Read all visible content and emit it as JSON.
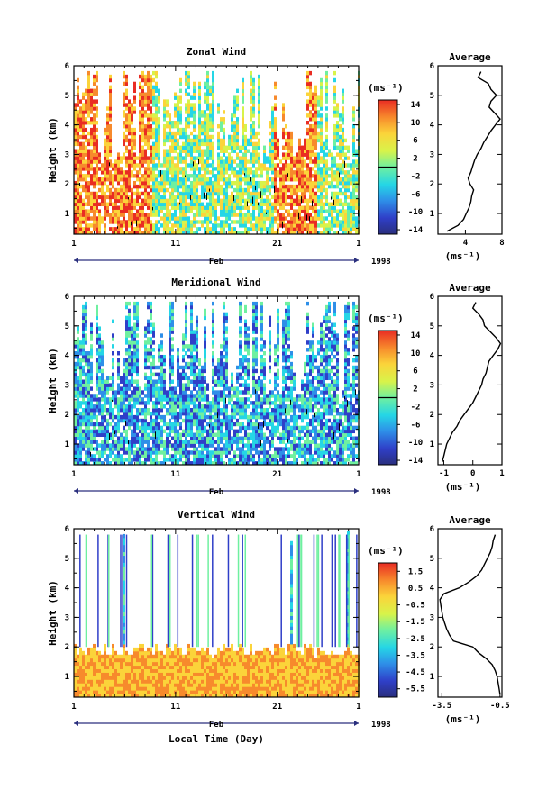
{
  "figure": {
    "xlabel": "Local Time (Day)",
    "year": "1998",
    "month_label": "Feb",
    "unit_label": "(ms⁻¹)"
  },
  "chart_data": [
    {
      "type": "heatmap",
      "title": "Zonal Wind",
      "ylabel": "Height (km)",
      "xlabel": "",
      "x_ticks": [
        "1",
        "11",
        "21",
        "1"
      ],
      "x_range": [
        "Feb 1",
        "Mar 1"
      ],
      "y_ticks": [
        "1",
        "2",
        "3",
        "4",
        "5",
        "6"
      ],
      "ylim": [
        0.3,
        6
      ],
      "colorbar": {
        "ticks": [
          "14",
          "10",
          "6",
          "2",
          "-2",
          "-6",
          "-10",
          "-14"
        ],
        "range": [
          -15,
          15
        ],
        "zero_line": 0
      },
      "profile": {
        "title": "Average",
        "xlabel": "(ms⁻¹)",
        "x_ticks": [
          "4",
          "8"
        ],
        "xlim": [
          1,
          8
        ],
        "heights": [
          0.4,
          0.6,
          0.8,
          1.0,
          1.2,
          1.4,
          1.6,
          1.8,
          2.0,
          2.2,
          2.4,
          2.6,
          2.8,
          3.0,
          3.2,
          3.4,
          3.6,
          3.8,
          4.0,
          4.2,
          4.4,
          4.6,
          4.8,
          5.0,
          5.2,
          5.4,
          5.6,
          5.8
        ],
        "values": [
          2.0,
          3.2,
          3.8,
          4.1,
          4.4,
          4.6,
          4.7,
          4.9,
          4.5,
          4.3,
          4.6,
          4.8,
          5.0,
          5.3,
          5.7,
          6.0,
          6.4,
          6.8,
          7.3,
          7.8,
          7.2,
          6.6,
          6.8,
          7.4,
          6.8,
          6.5,
          5.4,
          5.7
        ]
      }
    },
    {
      "type": "heatmap",
      "title": "Meridional Wind",
      "ylabel": "Height (km)",
      "xlabel": "",
      "x_ticks": [
        "1",
        "11",
        "21",
        "1"
      ],
      "x_range": [
        "Feb 1",
        "Mar 1"
      ],
      "y_ticks": [
        "1",
        "2",
        "3",
        "4",
        "5",
        "6"
      ],
      "ylim": [
        0.3,
        6
      ],
      "colorbar": {
        "ticks": [
          "14",
          "10",
          "6",
          "2",
          "-2",
          "-6",
          "-10",
          "-14"
        ],
        "range": [
          -15,
          15
        ],
        "zero_line": 0
      },
      "profile": {
        "title": "Average",
        "xlabel": "(ms⁻¹)",
        "x_ticks": [
          "-1",
          "0",
          "1"
        ],
        "xlim": [
          -1.2,
          1
        ],
        "heights": [
          0.4,
          0.6,
          0.8,
          1.0,
          1.2,
          1.4,
          1.6,
          1.8,
          2.0,
          2.2,
          2.4,
          2.6,
          2.8,
          3.0,
          3.2,
          3.4,
          3.6,
          3.8,
          4.0,
          4.2,
          4.4,
          4.6,
          4.8,
          5.0,
          5.2,
          5.4,
          5.6,
          5.8
        ],
        "values": [
          -1.05,
          -1.0,
          -0.95,
          -0.9,
          -0.8,
          -0.7,
          -0.55,
          -0.45,
          -0.3,
          -0.15,
          0.0,
          0.1,
          0.2,
          0.3,
          0.35,
          0.45,
          0.5,
          0.55,
          0.7,
          0.85,
          0.95,
          0.8,
          0.6,
          0.4,
          0.35,
          0.2,
          0.0,
          0.1
        ]
      }
    },
    {
      "type": "heatmap",
      "title": "Vertical Wind",
      "ylabel": "Height (km)",
      "xlabel": "Local Time (Day)",
      "x_ticks": [
        "1",
        "11",
        "21",
        "1"
      ],
      "x_range": [
        "Feb 1",
        "Mar 1"
      ],
      "y_ticks": [
        "1",
        "2",
        "3",
        "4",
        "5",
        "6"
      ],
      "ylim": [
        0.3,
        6
      ],
      "colorbar": {
        "ticks": [
          "1.5",
          "0.5",
          "-0.5",
          "-1.5",
          "-2.5",
          "-3.5",
          "-4.5",
          "-5.5"
        ],
        "range": [
          -6,
          2
        ],
        "zero_line": null
      },
      "profile": {
        "title": "Average",
        "xlabel": "(ms⁻¹)",
        "x_ticks": [
          "-3.5",
          "-0.5"
        ],
        "xlim": [
          -3.7,
          -0.4
        ],
        "heights": [
          0.4,
          0.6,
          0.8,
          1.0,
          1.2,
          1.4,
          1.6,
          1.8,
          2.0,
          2.2,
          2.4,
          2.6,
          2.8,
          3.0,
          3.2,
          3.4,
          3.6,
          3.8,
          4.0,
          4.2,
          4.4,
          4.6,
          4.8,
          5.0,
          5.2,
          5.4,
          5.6,
          5.8
        ],
        "values": [
          -0.5,
          -0.55,
          -0.6,
          -0.65,
          -0.75,
          -0.9,
          -1.2,
          -1.6,
          -1.9,
          -2.9,
          -3.1,
          -3.25,
          -3.35,
          -3.45,
          -3.5,
          -3.55,
          -3.6,
          -3.4,
          -2.6,
          -2.1,
          -1.7,
          -1.45,
          -1.3,
          -1.15,
          -1.0,
          -0.9,
          -0.85,
          -0.75
        ]
      }
    }
  ]
}
